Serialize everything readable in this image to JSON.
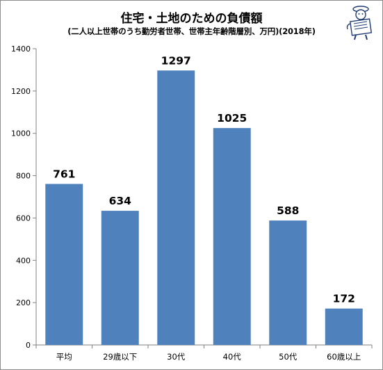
{
  "chart_data": {
    "type": "bar",
    "title": "住宅・土地のための負債額",
    "subtitle": "(二人以上世帯のうち勤労者世帯、世帯主年齢階層別、万円)(2018年)",
    "categories": [
      "平均",
      "29歳以下",
      "30代",
      "40代",
      "50代",
      "60歳以上"
    ],
    "values": [
      761,
      634,
      1297,
      1025,
      588,
      172
    ],
    "ylim": [
      0,
      1400
    ],
    "yticks": [
      0,
      200,
      400,
      600,
      800,
      1000,
      1200,
      1400
    ],
    "grid": false,
    "bar_color": "#4f81bd",
    "data_labels": true
  },
  "decoration": {
    "mascot_icon": "newspaper-reading-mascot-icon"
  }
}
